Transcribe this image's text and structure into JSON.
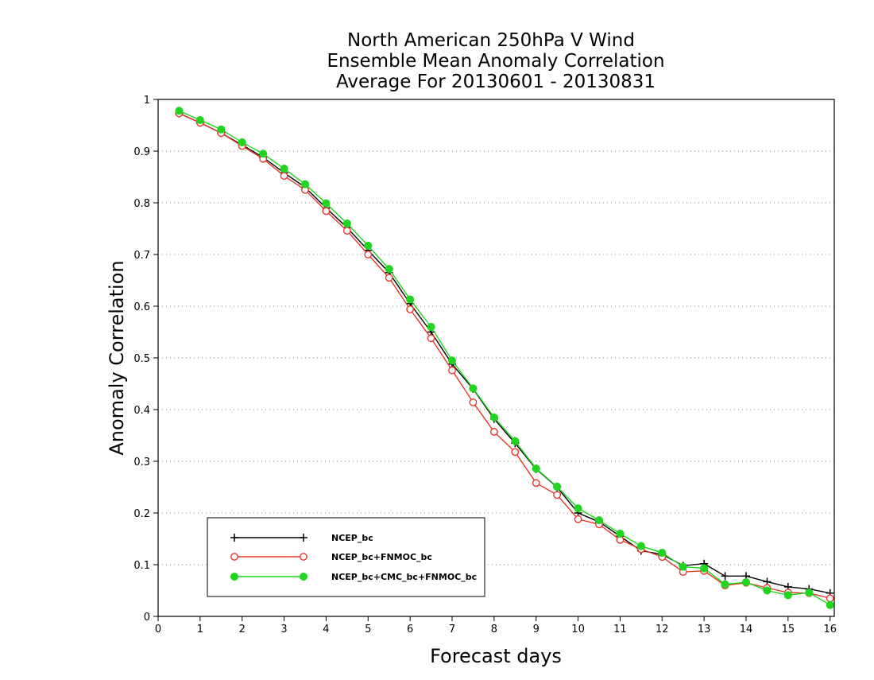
{
  "chart_data": {
    "type": "line",
    "title": [
      "North American 250hPa V Wind",
      "Ensemble Mean Anomaly Correlation",
      "Average For 20130601 - 20130831"
    ],
    "xlabel": "Forecast days",
    "ylabel": "Anomaly Correlation",
    "xlim": [
      0,
      16.1
    ],
    "ylim": [
      0,
      1
    ],
    "xticks": [
      "0",
      "1",
      "2",
      "3",
      "4",
      "5",
      "6",
      "7",
      "8",
      "9",
      "10",
      "11",
      "12",
      "13",
      "14",
      "15",
      "16"
    ],
    "yticks": [
      "0",
      "0.1",
      "0.2",
      "0.3",
      "0.4",
      "0.5",
      "0.6",
      "0.7",
      "0.8",
      "0.9",
      "1"
    ],
    "grid": "horizontal dotted",
    "legend_position": "lower-left",
    "x": [
      0.5,
      1,
      1.5,
      2,
      2.5,
      3,
      3.5,
      4,
      4.5,
      5,
      5.5,
      6,
      6.5,
      7,
      7.5,
      8,
      8.5,
      9,
      9.5,
      10,
      10.5,
      11,
      11.5,
      12,
      12.5,
      13,
      13.5,
      14,
      14.5,
      15,
      15.5,
      16
    ],
    "series": [
      {
        "name": "NCEP_bc",
        "color": "#000000",
        "marker": "plus",
        "values": [
          0.973,
          0.955,
          0.935,
          0.912,
          0.888,
          0.858,
          0.83,
          0.79,
          0.752,
          0.708,
          0.665,
          0.605,
          0.55,
          0.488,
          0.44,
          0.382,
          0.335,
          0.285,
          0.25,
          0.2,
          0.183,
          0.155,
          0.127,
          0.12,
          0.098,
          0.102,
          0.078,
          0.078,
          0.067,
          0.057,
          0.053,
          0.045
        ]
      },
      {
        "name": "NCEP_bc+FNMOC_bc",
        "color": "#e8362c",
        "marker": "open-circle",
        "values": [
          0.973,
          0.955,
          0.935,
          0.91,
          0.885,
          0.852,
          0.825,
          0.784,
          0.746,
          0.7,
          0.655,
          0.594,
          0.538,
          0.476,
          0.414,
          0.357,
          0.318,
          0.258,
          0.235,
          0.188,
          0.178,
          0.148,
          0.13,
          0.115,
          0.086,
          0.088,
          0.06,
          0.065,
          0.055,
          0.046,
          0.045,
          0.035
        ]
      },
      {
        "name": "NCEP_bc+CMC_bc+FNMOC_bc",
        "color": "#1fd51f",
        "marker": "filled-circle",
        "values": [
          0.978,
          0.96,
          0.942,
          0.917,
          0.895,
          0.866,
          0.836,
          0.799,
          0.76,
          0.717,
          0.672,
          0.613,
          0.56,
          0.495,
          0.441,
          0.385,
          0.339,
          0.286,
          0.251,
          0.209,
          0.186,
          0.16,
          0.136,
          0.123,
          0.096,
          0.093,
          0.062,
          0.066,
          0.05,
          0.041,
          0.046,
          0.022
        ]
      }
    ]
  }
}
